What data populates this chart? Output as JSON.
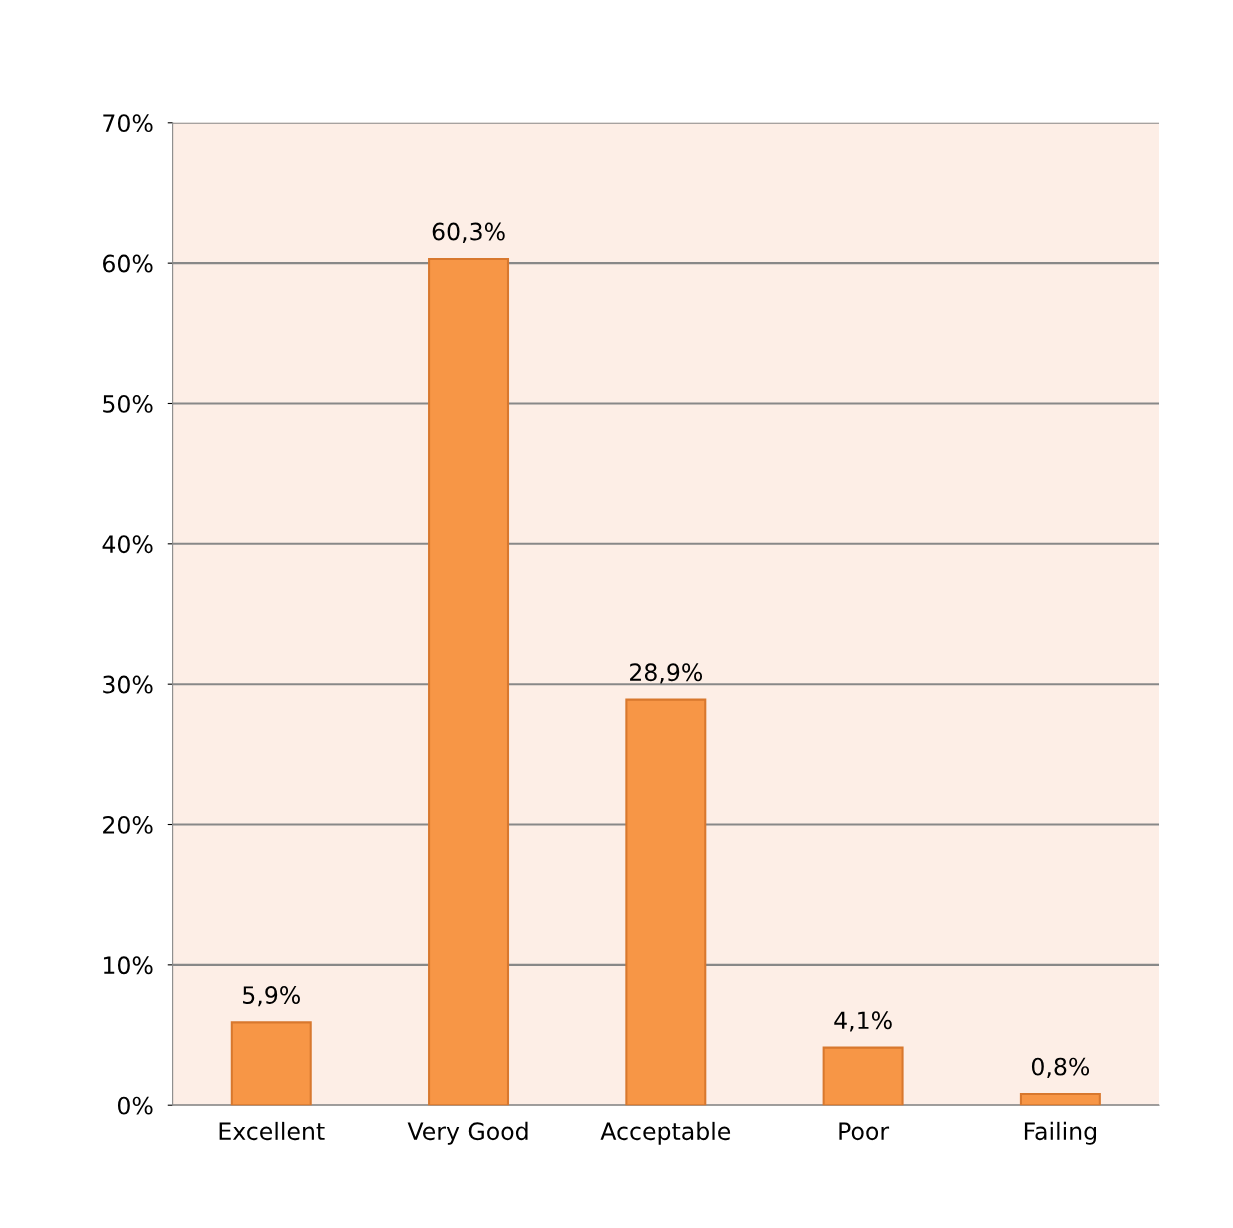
{
  "chart_data": {
    "type": "bar",
    "categories": [
      "Excellent",
      "Very Good",
      "Acceptable",
      "Poor",
      "Failing"
    ],
    "values": [
      5.9,
      60.3,
      28.9,
      4.1,
      0.8
    ],
    "value_labels": [
      "5,9%",
      "60,3%",
      "28,9%",
      "4,1%",
      "0,8%"
    ],
    "color": "#f79646",
    "ylim": [
      0,
      70
    ],
    "yticks": [
      {
        "value": 0,
        "label": "0%"
      },
      {
        "value": 10,
        "label": "10%"
      },
      {
        "value": 20,
        "label": "20%"
      },
      {
        "value": 30,
        "label": "30%"
      },
      {
        "value": 40,
        "label": "40%"
      },
      {
        "value": 50,
        "label": "50%"
      },
      {
        "value": 60,
        "label": "60%"
      },
      {
        "value": 70,
        "label": "70%"
      }
    ],
    "grid": "y",
    "legend": false
  }
}
